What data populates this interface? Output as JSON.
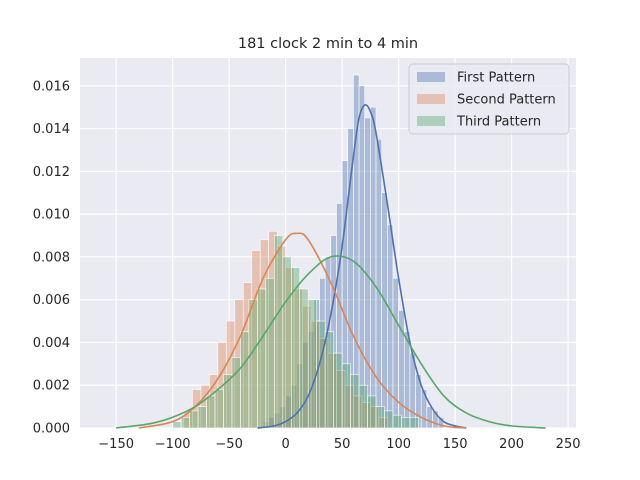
{
  "chart_data": {
    "type": "histogram-kde",
    "title": "181 clock 2 min to 4 min",
    "xlabel": "",
    "ylabel": "",
    "xlim": [
      -182,
      257
    ],
    "ylim": [
      0,
      0.0173
    ],
    "xticks": [
      -150,
      -100,
      -50,
      0,
      50,
      100,
      150,
      200,
      250
    ],
    "xtick_labels": [
      "−150",
      "−100",
      "−50",
      "0",
      "50",
      "100",
      "150",
      "200",
      "250"
    ],
    "yticks": [
      0,
      0.002,
      0.004,
      0.006,
      0.008,
      0.01,
      0.012,
      0.014,
      0.016
    ],
    "ytick_labels": [
      "0.000",
      "0.002",
      "0.004",
      "0.006",
      "0.008",
      "0.010",
      "0.012",
      "0.014",
      "0.016"
    ],
    "grid": true,
    "legend_position": "top-right",
    "series": [
      {
        "name": "First Pattern",
        "color": "#4c72b0",
        "bin_start": -20,
        "bin_width": 5,
        "hist": [
          0.0003,
          0.0005,
          0.0007,
          0.001,
          0.0015,
          0.002,
          0.003,
          0.004,
          0.0045,
          0.006,
          0.007,
          0.008,
          0.009,
          0.0105,
          0.0125,
          0.014,
          0.0165,
          0.016,
          0.0145,
          0.015,
          0.0135,
          0.011,
          0.0095,
          0.007,
          0.0055,
          0.0045,
          0.0035,
          0.0025,
          0.0018,
          0.001,
          0.0008,
          0.0005
        ],
        "kde": {
          "x": [
            -25,
            -10,
            0,
            10,
            20,
            30,
            40,
            50,
            60,
            65,
            70,
            75,
            80,
            90,
            100,
            110,
            120,
            130,
            140,
            150,
            160
          ],
          "y": [
            0,
            0.0001,
            0.0003,
            0.0007,
            0.0015,
            0.003,
            0.0053,
            0.0085,
            0.0127,
            0.0145,
            0.0151,
            0.0148,
            0.0138,
            0.0105,
            0.007,
            0.004,
            0.002,
            0.0009,
            0.0003,
            0.0001,
            0
          ]
        }
      },
      {
        "name": "Second Pattern",
        "color": "#dd8452",
        "bin_start": -90,
        "bin_width": 7.5,
        "hist": [
          0.0008,
          0.0018,
          0.002,
          0.0025,
          0.004,
          0.005,
          0.006,
          0.0068,
          0.0083,
          0.0088,
          0.0092,
          0.0085,
          0.0075,
          0.0065,
          0.0057,
          0.005,
          0.0042,
          0.0035,
          0.0027,
          0.002,
          0.0015,
          0.0012,
          0.001,
          0.0005
        ],
        "kde": {
          "x": [
            -130,
            -100,
            -80,
            -60,
            -40,
            -20,
            0,
            10,
            20,
            40,
            60,
            80,
            100,
            120,
            140,
            160
          ],
          "y": [
            0,
            0.0003,
            0.001,
            0.0023,
            0.0043,
            0.007,
            0.0088,
            0.0091,
            0.0088,
            0.0068,
            0.0043,
            0.0024,
            0.0012,
            0.0005,
            0.0001,
            0
          ]
        }
      },
      {
        "name": "Third Pattern",
        "color": "#55a868",
        "bin_start": -100,
        "bin_width": 7.5,
        "hist": [
          0.0003,
          0.0005,
          0.0008,
          0.001,
          0.0015,
          0.0018,
          0.0025,
          0.0033,
          0.0045,
          0.006,
          0.0065,
          0.007,
          0.009,
          0.008,
          0.0075,
          0.0065,
          0.006,
          0.005,
          0.0045,
          0.0035,
          0.003,
          0.0025,
          0.002,
          0.0015,
          0.001,
          0.0008,
          0.0006,
          0.0005,
          0.0005
        ],
        "kde": {
          "x": [
            -150,
            -120,
            -100,
            -80,
            -60,
            -40,
            -20,
            0,
            20,
            40,
            60,
            80,
            100,
            120,
            140,
            160,
            180,
            200,
            230
          ],
          "y": [
            0,
            0.0002,
            0.0005,
            0.001,
            0.0018,
            0.0028,
            0.0043,
            0.0059,
            0.0072,
            0.008,
            0.0078,
            0.0066,
            0.0048,
            0.003,
            0.0015,
            0.0007,
            0.0003,
            0.0001,
            0
          ]
        }
      }
    ]
  }
}
